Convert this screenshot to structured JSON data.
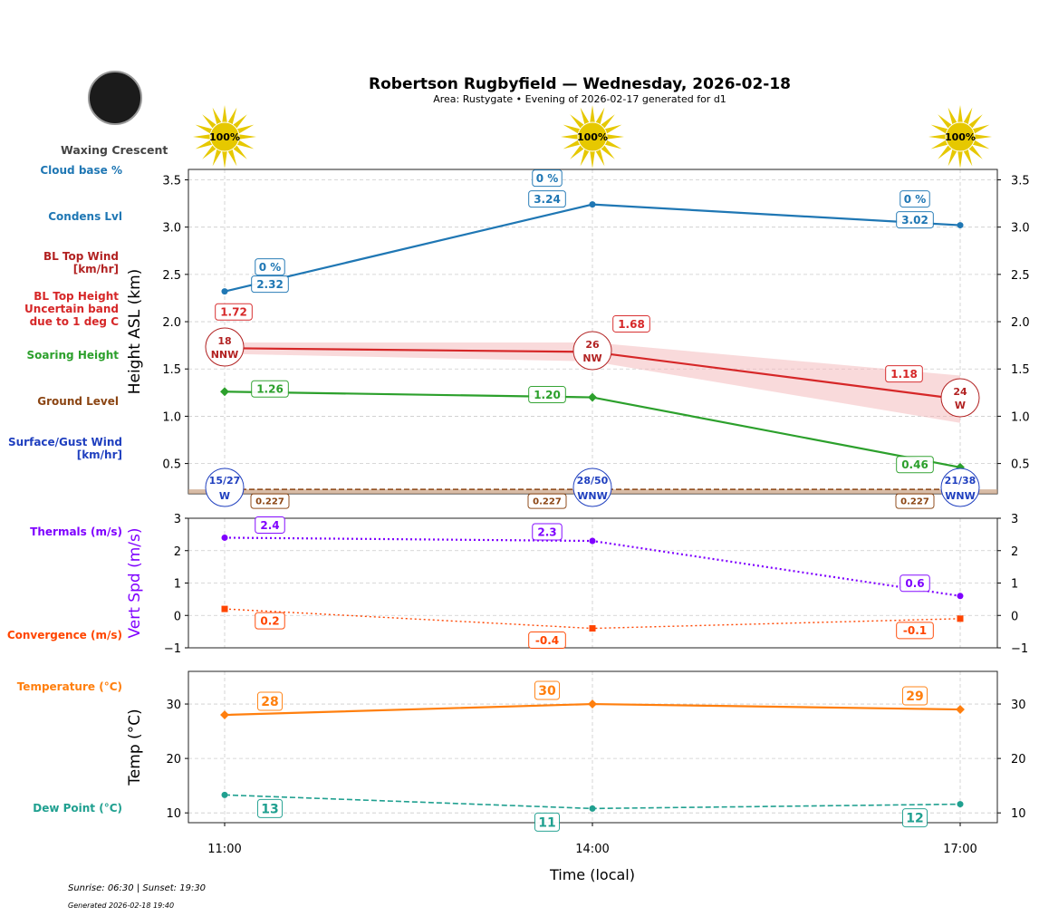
{
  "title": "Robertson Rugbyfield — Wednesday, 2026-02-18",
  "subtitle": "Area: Rustygate • Evening of 2026-02-17 generated for d1",
  "moon": {
    "phase_label": "Waxing Crescent",
    "icon": "moon-icon"
  },
  "footer": {
    "sun_times": "Sunrise: 06:30 | Sunset: 19:30",
    "generated": "Generated 2026-02-18 19:40"
  },
  "left_labels": {
    "cloud_base": "Cloud base %",
    "condens": "Condens Lvl",
    "bl_wind": "BL Top Wind [km/hr]",
    "bl_height": "BL Top Height Uncertain band due to 1 deg C",
    "soaring": "Soaring Height",
    "ground": "Ground Level",
    "surface_wind": "Surface/Gust Wind [km/hr]",
    "thermals": "Thermals (m/s)",
    "convergence": "Convergence (m/s)",
    "temperature": "Temperature (°C)",
    "dewpoint": "Dew Point (°C)"
  },
  "colors": {
    "condens": "#1f77b4",
    "bl": "#d62728",
    "band": "#f4b6b8",
    "soaring": "#2ca02c",
    "ground": "#8b4513",
    "surface_wind": "#1f3fbf",
    "thermals": "#7f00ff",
    "convergence": "#ff4500",
    "temperature": "#ff7f0e",
    "dewpoint": "#20a090",
    "sun": "#e6c800"
  },
  "chart_data": [
    {
      "type": "line",
      "ylabel": "Height ASL (km)",
      "x": [
        "11:00",
        "14:00",
        "17:00"
      ],
      "ylim": [
        0.18,
        3.61
      ],
      "yticks": [
        "0.5",
        "1.0",
        "1.5",
        "2.0",
        "2.5",
        "3.0",
        "3.5"
      ],
      "grid": true,
      "sun_percent": [
        "100%",
        "100%",
        "100%"
      ],
      "series": [
        {
          "key": "condens",
          "values": [
            2.32,
            3.24,
            3.02
          ],
          "labels": [
            "2.32",
            "3.24",
            "3.02"
          ],
          "cloud_base": [
            "0 %",
            "0 %",
            "0 %"
          ]
        },
        {
          "key": "bl",
          "values": [
            1.72,
            1.68,
            1.18
          ],
          "labels": [
            "1.72",
            "1.68",
            "1.18"
          ],
          "band_low": [
            1.66,
            1.58,
            0.93
          ],
          "band_high": [
            1.78,
            1.78,
            1.43
          ]
        },
        {
          "key": "soaring",
          "values": [
            1.26,
            1.2,
            0.46
          ],
          "labels": [
            "1.26",
            "1.20",
            "0.46"
          ]
        },
        {
          "key": "ground",
          "values": [
            0.227,
            0.227,
            0.227
          ],
          "labels": [
            "0.227",
            "0.227",
            "0.227"
          ]
        }
      ],
      "bl_wind": [
        {
          "speed": "18",
          "dir": "NNW"
        },
        {
          "speed": "26",
          "dir": "NW"
        },
        {
          "speed": "24",
          "dir": "W"
        }
      ],
      "surface_wind": [
        {
          "speed": "15/27",
          "dir": "W"
        },
        {
          "speed": "28/50",
          "dir": "WNW"
        },
        {
          "speed": "21/38",
          "dir": "WNW"
        }
      ]
    },
    {
      "type": "line",
      "ylabel": "Vert Spd (m/s)",
      "x": [
        "11:00",
        "14:00",
        "17:00"
      ],
      "ylim": [
        -1,
        3
      ],
      "yticks": [
        "−1",
        "0",
        "1",
        "2",
        "3"
      ],
      "grid": true,
      "series": [
        {
          "key": "thermals",
          "values": [
            2.4,
            2.3,
            0.6
          ],
          "labels": [
            "2.4",
            "2.3",
            "0.6"
          ]
        },
        {
          "key": "convergence",
          "values": [
            0.2,
            -0.4,
            -0.1
          ],
          "labels": [
            "0.2",
            "-0.4",
            "-0.1"
          ]
        }
      ]
    },
    {
      "type": "line",
      "ylabel": "Temp (°C)",
      "xlabel": "Time (local)",
      "x": [
        "11:00",
        "14:00",
        "17:00"
      ],
      "ylim": [
        8.2,
        36
      ],
      "yticks": [
        "10",
        "20",
        "30"
      ],
      "grid": true,
      "series": [
        {
          "key": "temperature",
          "values": [
            28,
            30,
            29
          ],
          "labels": [
            "28",
            "30",
            "29"
          ]
        },
        {
          "key": "dewpoint",
          "values": [
            13.3,
            10.8,
            11.6
          ],
          "labels": [
            "13",
            "11",
            "12"
          ]
        }
      ]
    }
  ]
}
